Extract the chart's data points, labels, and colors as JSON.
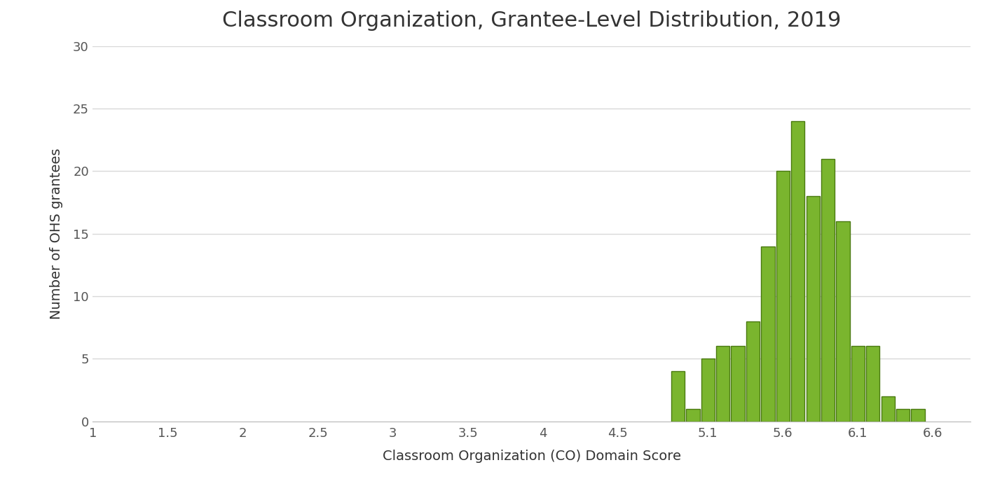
{
  "title": "Classroom Organization, Grantee-Level Distribution, 2019",
  "xlabel": "Classroom Organization (CO) Domain Score",
  "ylabel": "Number of OHS grantees",
  "bar_positions": [
    4.9,
    5.0,
    5.1,
    5.2,
    5.3,
    5.4,
    5.5,
    5.6,
    5.7,
    5.8,
    5.9,
    6.0,
    6.1,
    6.2,
    6.3,
    6.4,
    6.5
  ],
  "bar_heights": [
    4,
    1,
    5,
    6,
    6,
    8,
    14,
    20,
    24,
    18,
    21,
    16,
    6,
    6,
    2,
    1,
    1
  ],
  "bar_width": 0.09,
  "bar_color": "#7ab52e",
  "bar_edge_color": "#4a7a10",
  "bar_edge_width": 1.0,
  "xlim": [
    1.0,
    6.85
  ],
  "ylim": [
    0,
    30
  ],
  "xticks": [
    1.0,
    1.5,
    2.0,
    2.5,
    3.0,
    3.5,
    4.0,
    4.5,
    5.1,
    5.6,
    6.1,
    6.6
  ],
  "xtick_labels": [
    "1",
    "1.5",
    "2",
    "2.5",
    "3",
    "3.5",
    "4",
    "4.5",
    "5.1",
    "5.6",
    "6.1",
    "6.6"
  ],
  "yticks": [
    0,
    5,
    10,
    15,
    20,
    25,
    30
  ],
  "grid_color": "#d8d8d8",
  "background_color": "#ffffff",
  "title_fontsize": 22,
  "axis_label_fontsize": 14,
  "tick_fontsize": 13
}
